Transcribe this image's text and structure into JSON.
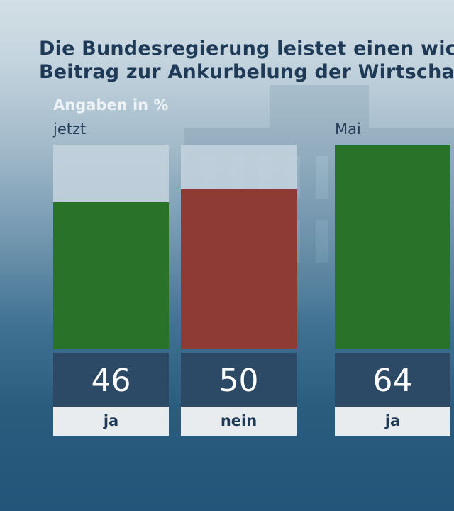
{
  "title_line1": "Die Bundesregierung leistet einen wic",
  "title_line2": "Beitrag zur Ankurbelung der Wirtscha",
  "subtitle": "Angaben in %",
  "colors": {
    "ja": "#28722a",
    "nein": "#8e3a35"
  },
  "chart_data": {
    "type": "bar",
    "title": "Die Bundesregierung leistet einen wic Beitrag zur Ankurbelung der Wirtscha",
    "subtitle": "Angaben in %",
    "ylim": [
      0,
      64
    ],
    "groups": [
      {
        "label": "jetzt",
        "bars": [
          {
            "category": "ja",
            "value": 46,
            "value_label": "46",
            "color": "#28722a"
          },
          {
            "category": "nein",
            "value": 50,
            "value_label": "50",
            "color": "#8e3a35"
          }
        ]
      },
      {
        "label": "Mai",
        "bars": [
          {
            "category": "ja",
            "value": 64,
            "value_label": "64",
            "color": "#28722a"
          }
        ]
      }
    ]
  }
}
